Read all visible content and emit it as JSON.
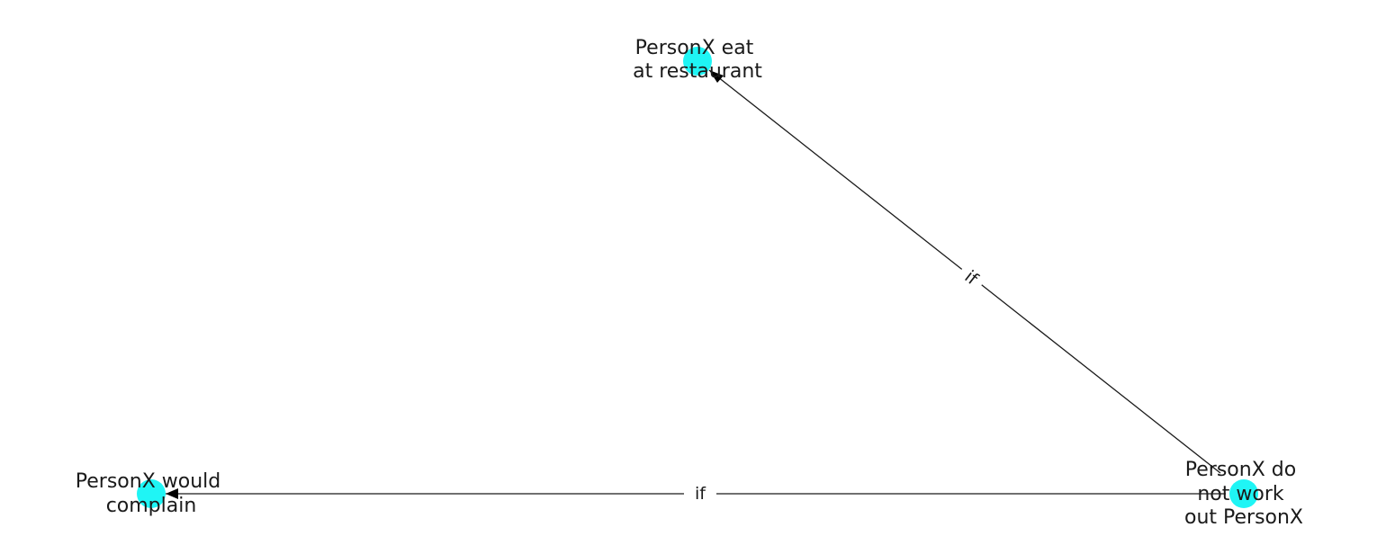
{
  "graph": {
    "node_color": "#1ff5f5",
    "edge_color": "#1a1a1a",
    "nodes": [
      {
        "id": "eat",
        "label_lines": [
          "PersonX eat",
          "at restaurant"
        ]
      },
      {
        "id": "complain",
        "label_lines": [
          "PersonX would",
          "complain"
        ]
      },
      {
        "id": "notwork",
        "label_lines": [
          "PersonX do",
          "not work",
          "out PersonX"
        ]
      }
    ],
    "edges": [
      {
        "from": "notwork",
        "to": "eat",
        "label": "if"
      },
      {
        "from": "notwork",
        "to": "complain",
        "label": "if"
      }
    ]
  }
}
